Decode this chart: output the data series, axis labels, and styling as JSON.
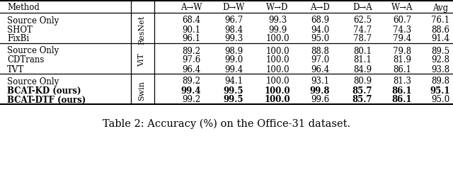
{
  "title": "Table 2: Accuracy (%) on the Office-31 dataset.",
  "col_headers": [
    "A→W",
    "D→W",
    "W→D",
    "A→D",
    "D→A",
    "W→A",
    "Avg"
  ],
  "groups": [
    {
      "label": "ResNet",
      "rows": [
        {
          "method": "Source Only",
          "bold_method": false,
          "values": [
            "68.4",
            "96.7",
            "99.3",
            "68.9",
            "62.5",
            "60.7",
            "76.1"
          ],
          "bold_values": [
            false,
            false,
            false,
            false,
            false,
            false,
            false
          ]
        },
        {
          "method": "SHOT",
          "bold_method": false,
          "values": [
            "90.1",
            "98.4",
            "99.9",
            "94.0",
            "74.7",
            "74.3",
            "88.6"
          ],
          "bold_values": [
            false,
            false,
            false,
            false,
            false,
            false,
            false
          ]
        },
        {
          "method": "FixBi",
          "bold_method": false,
          "values": [
            "96.1",
            "99.3",
            "100.0",
            "95.0",
            "78.7",
            "79.4",
            "91.4"
          ],
          "bold_values": [
            false,
            false,
            false,
            false,
            false,
            false,
            false
          ]
        }
      ]
    },
    {
      "label": "ViT",
      "rows": [
        {
          "method": "Source Only",
          "bold_method": false,
          "values": [
            "89.2",
            "98.9",
            "100.0",
            "88.8",
            "80.1",
            "79.8",
            "89.5"
          ],
          "bold_values": [
            false,
            false,
            false,
            false,
            false,
            false,
            false
          ]
        },
        {
          "method": "CDTrans",
          "bold_method": false,
          "values": [
            "97.6",
            "99.0",
            "100.0",
            "97.0",
            "81.1",
            "81.9",
            "92.8"
          ],
          "bold_values": [
            false,
            false,
            false,
            false,
            false,
            false,
            false
          ]
        },
        {
          "method": "TVT",
          "bold_method": false,
          "values": [
            "96.4",
            "99.4",
            "100.0",
            "96.4",
            "84.9",
            "86.1",
            "93.8"
          ],
          "bold_values": [
            false,
            false,
            false,
            false,
            false,
            false,
            false
          ]
        }
      ]
    },
    {
      "label": "Swin",
      "rows": [
        {
          "method": "Source Only",
          "bold_method": false,
          "values": [
            "89.2",
            "94.1",
            "100.0",
            "93.1",
            "80.9",
            "81.3",
            "89.8"
          ],
          "bold_values": [
            false,
            false,
            false,
            false,
            false,
            false,
            false
          ]
        },
        {
          "method": "BCAT-KD (ours)",
          "bold_method": true,
          "values": [
            "99.4",
            "99.5",
            "100.0",
            "99.8",
            "85.7",
            "86.1",
            "95.1"
          ],
          "bold_values": [
            true,
            true,
            true,
            true,
            true,
            true,
            true
          ]
        },
        {
          "method": "BCAT-DTF (ours)",
          "bold_method": true,
          "values": [
            "99.2",
            "99.5",
            "100.0",
            "99.6",
            "85.7",
            "86.1",
            "95.0"
          ],
          "bold_values": [
            false,
            true,
            true,
            false,
            true,
            true,
            false
          ]
        }
      ]
    }
  ],
  "font_size": 8.5,
  "caption_font_size": 10.5,
  "background_color": "#ffffff"
}
